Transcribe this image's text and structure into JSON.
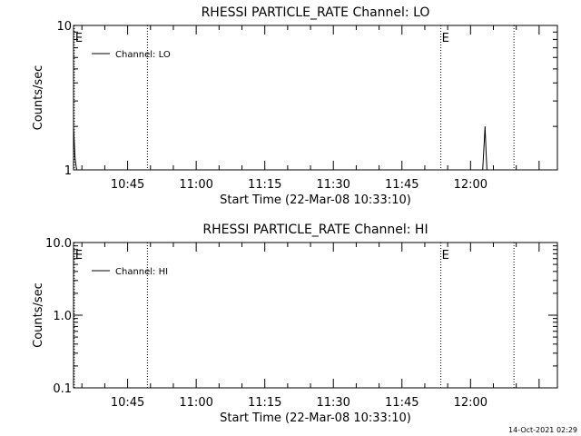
{
  "footer": {
    "timestamp": "14-Oct-2021 02:29"
  },
  "chart_data": [
    {
      "type": "line",
      "title": "RHESSI PARTICLE_RATE Channel: LO",
      "xlabel": "Start Time (22-Mar-08 10:33:10)",
      "ylabel": "Counts/sec",
      "y_scale": "log",
      "ylim": [
        1,
        10
      ],
      "y_ticks": [
        "1",
        "10"
      ],
      "xlim": [
        "10:33:10",
        "12:19:00"
      ],
      "x_ticks": [
        "10:45",
        "11:00",
        "11:15",
        "11:30",
        "11:45",
        "12:00"
      ],
      "legend": {
        "position": "top-left",
        "entries": [
          "Channel: LO"
        ]
      },
      "markers": [
        {
          "label": "E",
          "time": "10:33:20"
        },
        {
          "label": "",
          "time": "10:49:20"
        },
        {
          "label": "E",
          "time": "11:53:30"
        },
        {
          "label": "",
          "time": "12:09:30"
        }
      ],
      "series": [
        {
          "name": "Channel: LO",
          "points": [
            [
              "10:33:10",
              2.0
            ],
            [
              "10:33:30",
              1.2
            ],
            [
              "10:33:50",
              1.0
            ]
          ]
        },
        {
          "name": "Channel: LO",
          "points": [
            [
              "12:02:40",
              1.0
            ],
            [
              "12:02:55",
              1.4
            ],
            [
              "12:03:10",
              2.0
            ],
            [
              "12:03:25",
              1.3
            ],
            [
              "12:03:35",
              1.0
            ]
          ]
        }
      ]
    },
    {
      "type": "line",
      "title": "RHESSI PARTICLE_RATE Channel: HI",
      "xlabel": "Start Time (22-Mar-08 10:33:10)",
      "ylabel": "Counts/sec",
      "y_scale": "log",
      "ylim": [
        0.1,
        10
      ],
      "y_ticks": [
        "0.1",
        "1.0",
        "10.0"
      ],
      "xlim": [
        "10:33:10",
        "12:19:00"
      ],
      "x_ticks": [
        "10:45",
        "11:00",
        "11:15",
        "11:30",
        "11:45",
        "12:00"
      ],
      "legend": {
        "position": "top-left",
        "entries": [
          "Channel: HI"
        ]
      },
      "markers": [
        {
          "label": "E",
          "time": "10:33:20"
        },
        {
          "label": "",
          "time": "10:49:20"
        },
        {
          "label": "E",
          "time": "11:53:30"
        },
        {
          "label": "",
          "time": "12:09:30"
        }
      ],
      "series": [
        {
          "name": "Channel: HI",
          "points": []
        }
      ]
    }
  ]
}
